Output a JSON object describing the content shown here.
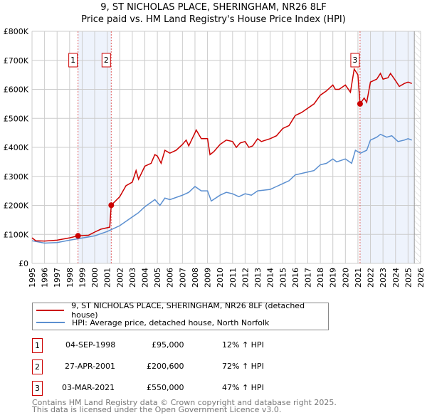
{
  "chart_data": {
    "type": "line",
    "title": "9, ST NICHOLAS PLACE, SHERINGHAM, NR26 8LF",
    "subtitle": "Price paid vs. HM Land Registry's House Price Index (HPI)",
    "xlim": [
      1995,
      2026
    ],
    "ylim": [
      0,
      800000
    ],
    "x_ticks": [
      "1995",
      "1996",
      "1997",
      "1998",
      "1999",
      "2000",
      "2001",
      "2002",
      "2003",
      "2004",
      "2005",
      "2006",
      "2007",
      "2008",
      "2009",
      "2010",
      "2011",
      "2012",
      "2013",
      "2014",
      "2015",
      "2016",
      "2017",
      "2018",
      "2019",
      "2020",
      "2021",
      "2022",
      "2023",
      "2024",
      "2025",
      "2026"
    ],
    "y_ticks": [
      {
        "v": 0,
        "label": "£0"
      },
      {
        "v": 100000,
        "label": "£100K"
      },
      {
        "v": 200000,
        "label": "£200K"
      },
      {
        "v": 300000,
        "label": "£300K"
      },
      {
        "v": 400000,
        "label": "£400K"
      },
      {
        "v": 500000,
        "label": "£500K"
      },
      {
        "v": 600000,
        "label": "£600K"
      },
      {
        "v": 700000,
        "label": "£700K"
      },
      {
        "v": 800000,
        "label": "£800K"
      }
    ],
    "grid": true,
    "shaded_ranges": [
      [
        1998.67,
        2001.32
      ],
      [
        2021.17,
        2025.5
      ]
    ],
    "hatched_after": 2025.5,
    "series": [
      {
        "name": "9, ST NICHOLAS PLACE, SHERINGHAM, NR26 8LF (detached house)",
        "color": "#cc0000",
        "x": [
          1995,
          1995.3,
          1996,
          1997,
          1998,
          1998.67,
          1999.5,
          2000,
          2000.5,
          2001.2,
          2001.32,
          2002,
          2002.5,
          2003,
          2003.3,
          2003.5,
          2004,
          2004.5,
          2004.8,
          2005,
          2005.3,
          2005.6,
          2006,
          2006.5,
          2007,
          2007.3,
          2007.5,
          2008,
          2008.1,
          2008.5,
          2009,
          2009.2,
          2009.5,
          2010,
          2010.5,
          2011,
          2011.3,
          2011.6,
          2012,
          2012.3,
          2012.6,
          2013,
          2013.3,
          2014,
          2014.5,
          2015,
          2015.5,
          2016,
          2016.5,
          2017,
          2017.5,
          2018,
          2018.5,
          2019,
          2019.2,
          2019.5,
          2020,
          2020.4,
          2020.7,
          2021,
          2021.17,
          2021.5,
          2021.7,
          2022,
          2022.5,
          2022.8,
          2023,
          2023.4,
          2023.6,
          2024,
          2024.3,
          2024.7,
          2025,
          2025.3
        ],
        "y": [
          88000,
          78000,
          77000,
          80000,
          88000,
          95000,
          97000,
          108000,
          118000,
          125000,
          200600,
          230000,
          268000,
          280000,
          320000,
          290000,
          335000,
          345000,
          375000,
          370000,
          345000,
          390000,
          380000,
          390000,
          410000,
          425000,
          405000,
          450000,
          460000,
          430000,
          430000,
          375000,
          385000,
          410000,
          425000,
          420000,
          400000,
          415000,
          420000,
          400000,
          405000,
          430000,
          420000,
          430000,
          440000,
          465000,
          475000,
          510000,
          520000,
          535000,
          550000,
          580000,
          595000,
          615000,
          600000,
          600000,
          615000,
          590000,
          670000,
          650000,
          550000,
          570000,
          555000,
          625000,
          635000,
          655000,
          635000,
          640000,
          655000,
          630000,
          610000,
          620000,
          625000,
          620000
        ]
      },
      {
        "name": "HPI: Average price, detached house, North Norfolk",
        "color": "#5b8fd0",
        "x": [
          1995,
          1996,
          1997,
          1998,
          1998.67,
          2000,
          2001,
          2002,
          2003,
          2003.5,
          2004,
          2004.8,
          2005.2,
          2005.6,
          2006,
          2007,
          2007.5,
          2008,
          2008.5,
          2009,
          2009.3,
          2010,
          2010.5,
          2011,
          2011.5,
          2012,
          2012.5,
          2013,
          2014,
          2014.5,
          2015,
          2015.5,
          2016,
          2017,
          2017.5,
          2018,
          2018.5,
          2019,
          2019.3,
          2020,
          2020.5,
          2020.8,
          2021.2,
          2021.7,
          2022,
          2022.5,
          2022.8,
          2023.3,
          2023.7,
          2024.2,
          2024.7,
          2025,
          2025.3
        ],
        "y": [
          78000,
          70000,
          72000,
          80000,
          85000,
          95000,
          110000,
          130000,
          160000,
          175000,
          195000,
          220000,
          200000,
          225000,
          220000,
          235000,
          245000,
          265000,
          250000,
          250000,
          215000,
          235000,
          245000,
          240000,
          230000,
          240000,
          235000,
          250000,
          255000,
          265000,
          275000,
          285000,
          305000,
          315000,
          320000,
          340000,
          345000,
          360000,
          350000,
          360000,
          345000,
          390000,
          380000,
          390000,
          425000,
          435000,
          445000,
          435000,
          440000,
          420000,
          425000,
          430000,
          425000
        ]
      }
    ],
    "sales": [
      {
        "n": "1",
        "x": 1998.67,
        "y": 95000
      },
      {
        "n": "2",
        "x": 2001.32,
        "y": 200600
      },
      {
        "n": "3",
        "x": 2021.17,
        "y": 550000
      }
    ],
    "legend_position": "below"
  },
  "legend": [
    {
      "label": "9, ST NICHOLAS PLACE, SHERINGHAM, NR26 8LF (detached house)",
      "color": "#cc0000"
    },
    {
      "label": "HPI: Average price, detached house, North Norfolk",
      "color": "#5b8fd0"
    }
  ],
  "table": [
    {
      "n": "1",
      "date": "04-SEP-1998",
      "price": "£95,000",
      "hpi": "12% ↑ HPI"
    },
    {
      "n": "2",
      "date": "27-APR-2001",
      "price": "£200,600",
      "hpi": "72% ↑ HPI"
    },
    {
      "n": "3",
      "date": "03-MAR-2021",
      "price": "£550,000",
      "hpi": "47% ↑ HPI"
    }
  ],
  "footer": [
    "Contains HM Land Registry data © Crown copyright and database right 2025.",
    "This data is licensed under the Open Government Licence v3.0."
  ]
}
